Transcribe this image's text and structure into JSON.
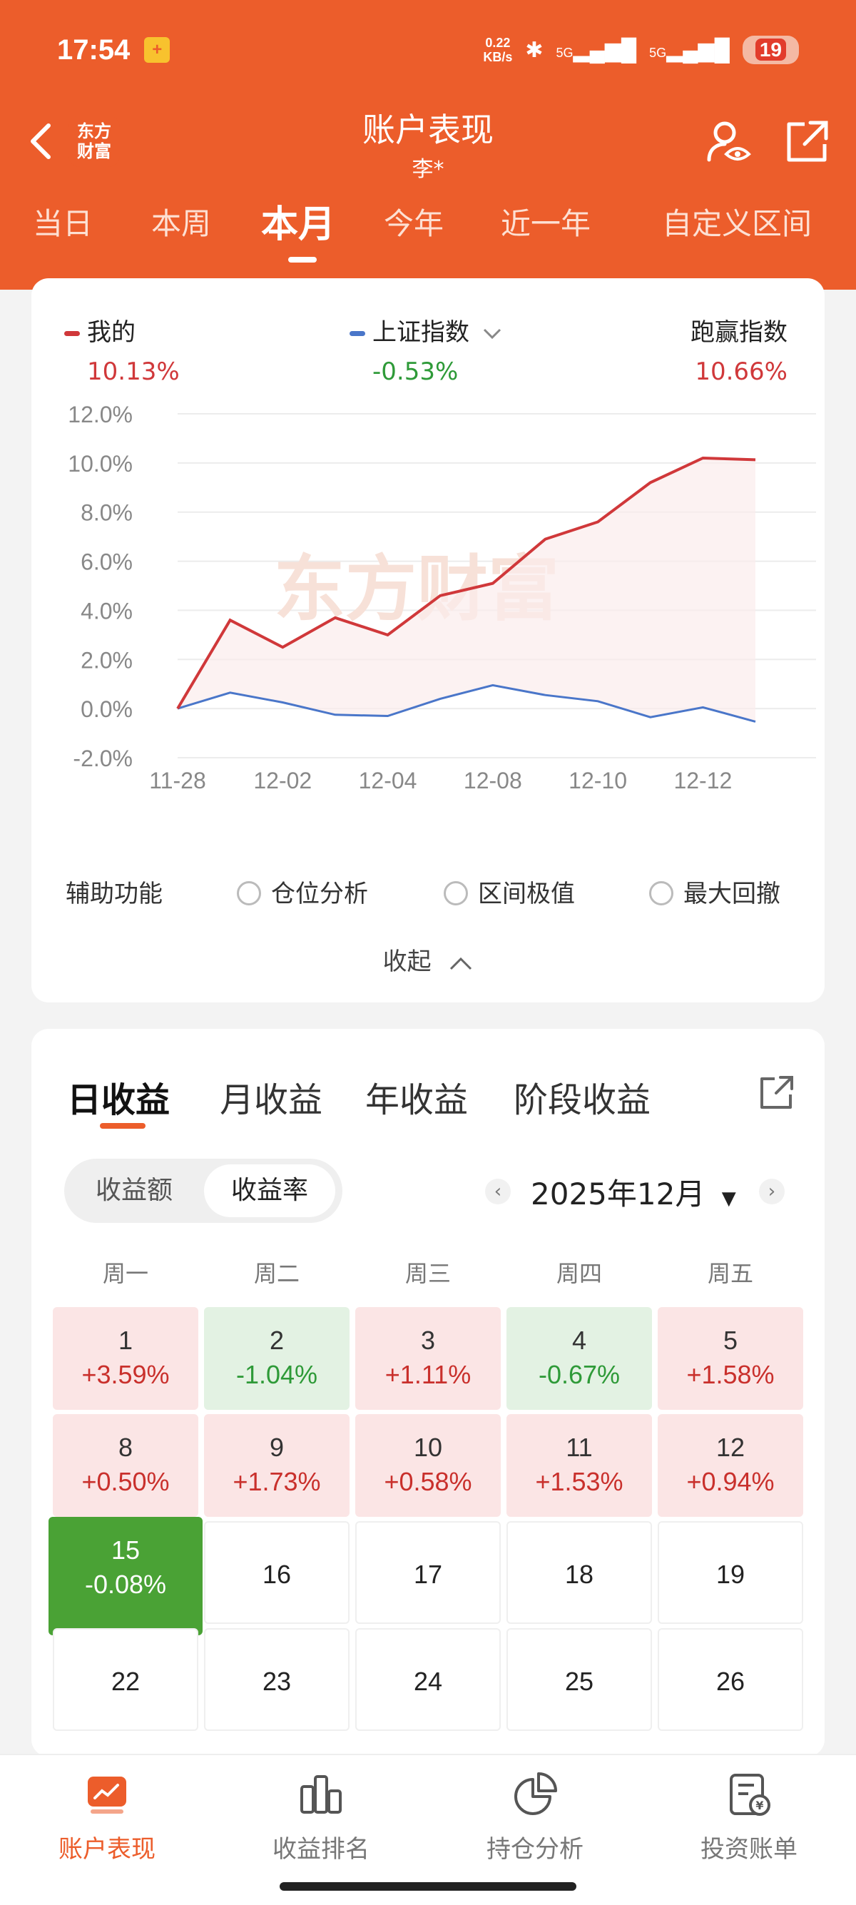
{
  "status_bar": {
    "time": "17:54",
    "net_speed_value": "0.22",
    "net_speed_unit": "KB/s",
    "sig1": "5G",
    "sig2": "5G",
    "battery": "19"
  },
  "header": {
    "logo_line1": "东方",
    "logo_line2": "财富",
    "title": "账户表现",
    "subtitle": "李*"
  },
  "period_tabs": [
    {
      "label": "当日"
    },
    {
      "label": "本周"
    },
    {
      "label": "本月"
    },
    {
      "label": "今年"
    },
    {
      "label": "近一年"
    },
    {
      "label": "自定义区间"
    }
  ],
  "legend": {
    "mine": {
      "label": "我的",
      "value": "10.13%"
    },
    "index": {
      "label": "上证指数",
      "value": "-0.53%"
    },
    "beat": {
      "label": "跑赢指数",
      "value": "10.66%"
    }
  },
  "colors": {
    "brand": "#ec5d2b",
    "mine_line": "#d0383a",
    "index_line": "#4a76c9",
    "up": "#c9302c",
    "down": "#2e9a38"
  },
  "chart_data": {
    "type": "line",
    "watermark": "东方财富",
    "y_ticks": [
      "12.0%",
      "10.0%",
      "8.0%",
      "6.0%",
      "4.0%",
      "2.0%",
      "0.0%",
      "-2.0%"
    ],
    "x_tick_labels": [
      "11-28",
      "12-02",
      "12-04",
      "12-08",
      "12-10",
      "12-12"
    ],
    "ylim": [
      -2,
      12
    ],
    "x": [
      "11-28",
      "12-01",
      "12-02",
      "12-03",
      "12-04",
      "12-05",
      "12-08",
      "12-09",
      "12-10",
      "12-11",
      "12-12",
      "12-15"
    ],
    "series": [
      {
        "name": "我的",
        "values": [
          0.0,
          3.6,
          2.5,
          3.7,
          3.0,
          4.6,
          5.1,
          6.9,
          7.6,
          9.2,
          10.2,
          10.13
        ]
      },
      {
        "name": "上证指数",
        "values": [
          0.0,
          0.65,
          0.25,
          -0.25,
          -0.3,
          0.4,
          0.95,
          0.55,
          0.3,
          -0.35,
          0.05,
          -0.53
        ]
      }
    ]
  },
  "aux": {
    "label": "辅助功能",
    "opt1": "仓位分析",
    "opt2": "区间极值",
    "opt3": "最大回撤",
    "collapse": "收起"
  },
  "earnings": {
    "tabs": [
      "日收益",
      "月收益",
      "年收益",
      "阶段收益"
    ],
    "toggle_amount": "收益额",
    "toggle_rate": "收益率",
    "month": "2025年12月",
    "weekdays": [
      "周一",
      "周二",
      "周三",
      "周四",
      "周五"
    ],
    "days": [
      {
        "d": "1",
        "p": "+3.59%",
        "t": "up"
      },
      {
        "d": "2",
        "p": "-1.04%",
        "t": "down"
      },
      {
        "d": "3",
        "p": "+1.11%",
        "t": "up"
      },
      {
        "d": "4",
        "p": "-0.67%",
        "t": "down"
      },
      {
        "d": "5",
        "p": "+1.58%",
        "t": "up"
      },
      {
        "d": "8",
        "p": "+0.50%",
        "t": "up"
      },
      {
        "d": "9",
        "p": "+1.73%",
        "t": "up"
      },
      {
        "d": "10",
        "p": "+0.58%",
        "t": "up"
      },
      {
        "d": "11",
        "p": "+1.53%",
        "t": "up"
      },
      {
        "d": "12",
        "p": "+0.94%",
        "t": "up"
      },
      {
        "d": "15",
        "p": "-0.08%",
        "t": "today"
      },
      {
        "d": "16",
        "p": "",
        "t": "empty"
      },
      {
        "d": "17",
        "p": "",
        "t": "empty"
      },
      {
        "d": "18",
        "p": "",
        "t": "empty"
      },
      {
        "d": "19",
        "p": "",
        "t": "empty"
      },
      {
        "d": "22",
        "p": "",
        "t": "empty"
      },
      {
        "d": "23",
        "p": "",
        "t": "empty"
      },
      {
        "d": "24",
        "p": "",
        "t": "empty"
      },
      {
        "d": "25",
        "p": "",
        "t": "empty"
      },
      {
        "d": "26",
        "p": "",
        "t": "empty"
      }
    ]
  },
  "bottom_nav": [
    {
      "label": "账户表现",
      "icon": "chart-icon"
    },
    {
      "label": "收益排名",
      "icon": "bar-rank-icon"
    },
    {
      "label": "持仓分析",
      "icon": "pie-icon"
    },
    {
      "label": "投资账单",
      "icon": "bill-icon"
    }
  ]
}
